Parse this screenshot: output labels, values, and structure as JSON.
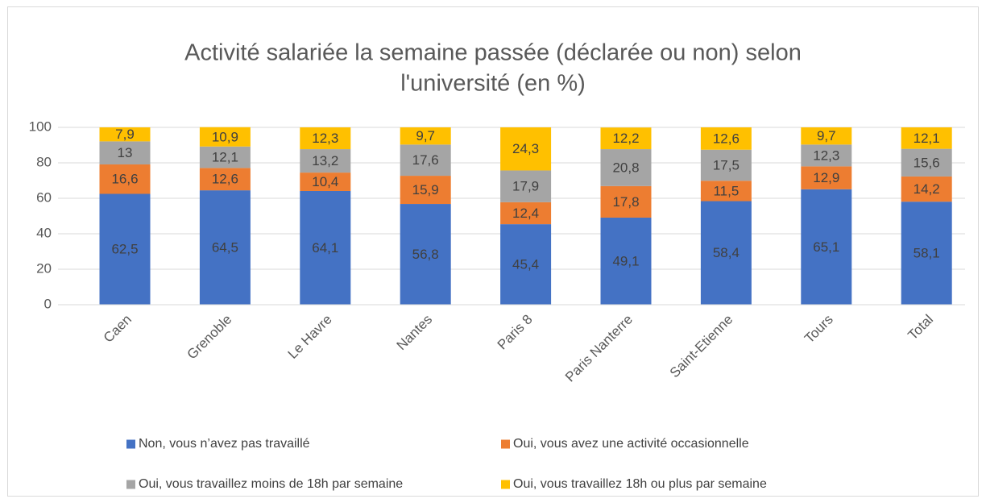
{
  "chart_data": {
    "type": "stacked_bar",
    "title": [
      "Activité salariée la semaine passée (déclarée ou non) selon",
      "l'université (en %)"
    ],
    "categories": [
      "Caen",
      "Grenoble",
      "Le Havre",
      "Nantes",
      "Paris 8",
      "Paris Nanterre",
      "Saint-Etienne",
      "Tours",
      "Total"
    ],
    "series": [
      {
        "name": "Non, vous n’avez pas travaillé",
        "color": "#4472c4",
        "values": [
          62.5,
          64.5,
          64.1,
          56.8,
          45.4,
          49.1,
          58.4,
          65.1,
          58.1
        ],
        "value_labels": [
          "62,5",
          "64,5",
          "64,1",
          "56,8",
          "45,4",
          "49,1",
          "58,4",
          "65,1",
          "58,1"
        ]
      },
      {
        "name": "Oui, vous avez une activité occasionnelle",
        "color": "#ed7d31",
        "values": [
          16.6,
          12.6,
          10.4,
          15.9,
          12.4,
          17.8,
          11.5,
          12.9,
          14.2
        ],
        "value_labels": [
          "16,6",
          "12,6",
          "10,4",
          "15,9",
          "12,4",
          "17,8",
          "11,5",
          "12,9",
          "14,2"
        ]
      },
      {
        "name": "Oui, vous travaillez moins de 18h par semaine",
        "color": "#a5a5a5",
        "values": [
          13,
          12.1,
          13.2,
          17.6,
          17.9,
          20.8,
          17.5,
          12.3,
          15.6
        ],
        "value_labels": [
          "13",
          "12,1",
          "13,2",
          "17,6",
          "17,9",
          "20,8",
          "17,5",
          "12,3",
          "15,6"
        ]
      },
      {
        "name": "Oui, vous travaillez 18h ou plus par semaine",
        "color": "#ffc000",
        "values": [
          7.9,
          10.9,
          12.3,
          9.7,
          24.3,
          12.2,
          12.6,
          9.7,
          12.1
        ],
        "value_labels": [
          "7,9",
          "10,9",
          "12,3",
          "9,7",
          "24,3",
          "12,2",
          "12,6",
          "9,7",
          "12,1"
        ]
      }
    ],
    "ylim": [
      0,
      100
    ],
    "yticks": [
      0,
      20,
      40,
      60,
      80,
      100
    ],
    "grid": true,
    "legend": "bottom"
  }
}
